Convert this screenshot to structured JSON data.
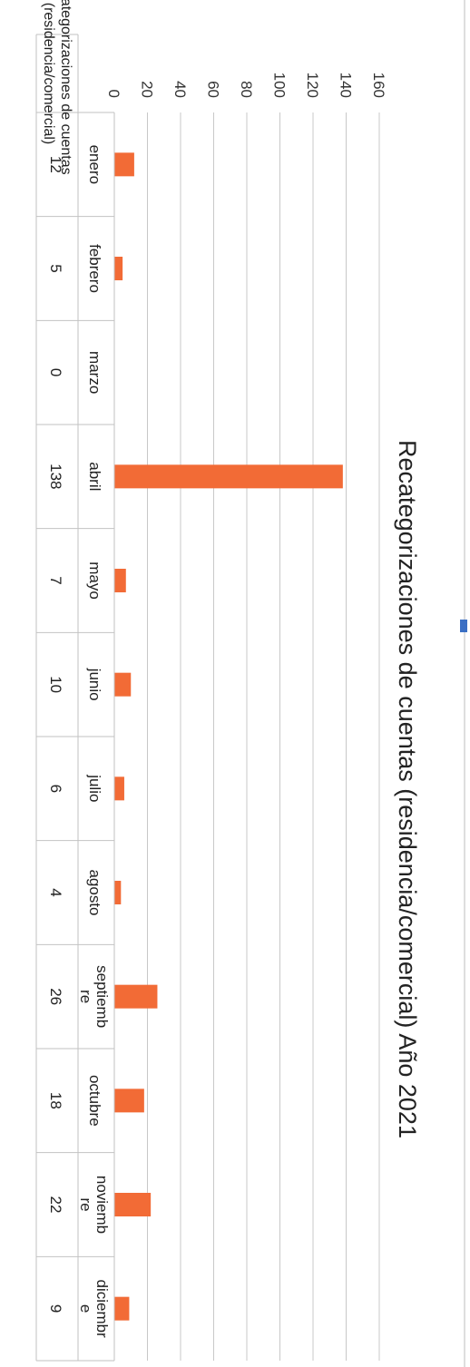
{
  "chart_data": {
    "type": "bar",
    "title": "Recategorizaciones de cuentas (residencia/comercial) Año 2021",
    "categories": [
      [
        "enero"
      ],
      [
        "febrero"
      ],
      [
        "marzo"
      ],
      [
        "abril"
      ],
      [
        "mayo"
      ],
      [
        "junio"
      ],
      [
        "julio"
      ],
      [
        "agosto"
      ],
      [
        "septiemb",
        "re"
      ],
      [
        "octubre"
      ],
      [
        "noviemb",
        "re"
      ],
      [
        "diciembr",
        "e"
      ]
    ],
    "series": [
      {
        "name": "Recategorizaciones de cuentas (residencia/comercial)",
        "name_lines": [
          "Recategorizaciones de cuentas",
          "(residencia/comercial)"
        ],
        "values": [
          12,
          5,
          0,
          138,
          7,
          10,
          6,
          4,
          26,
          18,
          22,
          9
        ],
        "color": "#f26b36"
      }
    ],
    "yticks": [
      0,
      20,
      40,
      60,
      80,
      100,
      120,
      140,
      160
    ],
    "ylim": [
      0,
      160
    ],
    "grid": true,
    "legend": "data-table-below",
    "table": true
  }
}
